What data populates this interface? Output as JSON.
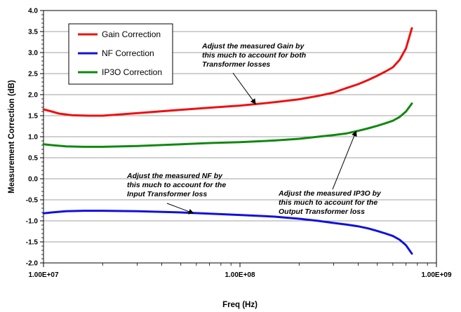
{
  "chart_data": {
    "type": "line",
    "xscale": "log",
    "xlim": [
      10000000,
      1000000000
    ],
    "ylim": [
      -2.0,
      4.0
    ],
    "grid": "horizontal-major",
    "xlabel": "Freq (Hz)",
    "ylabel": "Measurement Correction (dB)",
    "x_ticks": [
      {
        "value": 10000000,
        "label": "1.00E+07"
      },
      {
        "value": 100000000,
        "label": "1.00E+08"
      },
      {
        "value": 1000000000,
        "label": "1.00E+09"
      }
    ],
    "y_ticks": [
      {
        "value": 4.0,
        "label": "4.0"
      },
      {
        "value": 3.5,
        "label": "3.5"
      },
      {
        "value": 3.0,
        "label": "3.0"
      },
      {
        "value": 2.5,
        "label": "2.5"
      },
      {
        "value": 2.0,
        "label": "2.0"
      },
      {
        "value": 1.5,
        "label": "1.5"
      },
      {
        "value": 1.0,
        "label": "1.0"
      },
      {
        "value": 0.5,
        "label": "0.5"
      },
      {
        "value": 0.0,
        "label": "0.0"
      },
      {
        "value": -0.5,
        "label": "-0.5"
      },
      {
        "value": -1.0,
        "label": "-1.0"
      },
      {
        "value": -1.5,
        "label": "-1.5"
      },
      {
        "value": -2.0,
        "label": "-2.0"
      }
    ],
    "legend_position": "top-left",
    "series": [
      {
        "name": "Gain Correction",
        "color": "#ee1111",
        "points": [
          [
            10000000,
            1.65
          ],
          [
            11000000,
            1.6
          ],
          [
            12000000,
            1.55
          ],
          [
            14000000,
            1.51
          ],
          [
            17000000,
            1.5
          ],
          [
            20000000,
            1.5
          ],
          [
            30000000,
            1.56
          ],
          [
            50000000,
            1.64
          ],
          [
            70000000,
            1.69
          ],
          [
            100000000,
            1.74
          ],
          [
            150000000,
            1.82
          ],
          [
            200000000,
            1.89
          ],
          [
            250000000,
            1.97
          ],
          [
            300000000,
            2.05
          ],
          [
            350000000,
            2.16
          ],
          [
            400000000,
            2.25
          ],
          [
            450000000,
            2.35
          ],
          [
            500000000,
            2.45
          ],
          [
            550000000,
            2.55
          ],
          [
            600000000,
            2.65
          ],
          [
            650000000,
            2.83
          ],
          [
            700000000,
            3.1
          ],
          [
            750000000,
            3.58
          ]
        ]
      },
      {
        "name": "NF Correction",
        "color": "#1111dd",
        "points": [
          [
            10000000,
            -0.82
          ],
          [
            11000000,
            -0.8
          ],
          [
            13000000,
            -0.77
          ],
          [
            16000000,
            -0.76
          ],
          [
            20000000,
            -0.76
          ],
          [
            30000000,
            -0.77
          ],
          [
            50000000,
            -0.8
          ],
          [
            70000000,
            -0.83
          ],
          [
            100000000,
            -0.86
          ],
          [
            150000000,
            -0.9
          ],
          [
            200000000,
            -0.95
          ],
          [
            250000000,
            -1.0
          ],
          [
            300000000,
            -1.05
          ],
          [
            350000000,
            -1.09
          ],
          [
            400000000,
            -1.13
          ],
          [
            450000000,
            -1.18
          ],
          [
            500000000,
            -1.24
          ],
          [
            550000000,
            -1.3
          ],
          [
            600000000,
            -1.36
          ],
          [
            650000000,
            -1.45
          ],
          [
            700000000,
            -1.58
          ],
          [
            750000000,
            -1.78
          ]
        ]
      },
      {
        "name": "IP3O Correction",
        "color": "#118811",
        "points": [
          [
            10000000,
            0.82
          ],
          [
            11000000,
            0.8
          ],
          [
            13000000,
            0.77
          ],
          [
            16000000,
            0.76
          ],
          [
            20000000,
            0.76
          ],
          [
            30000000,
            0.78
          ],
          [
            50000000,
            0.82
          ],
          [
            70000000,
            0.85
          ],
          [
            100000000,
            0.87
          ],
          [
            150000000,
            0.91
          ],
          [
            200000000,
            0.95
          ],
          [
            250000000,
            1.0
          ],
          [
            300000000,
            1.04
          ],
          [
            350000000,
            1.08
          ],
          [
            400000000,
            1.14
          ],
          [
            450000000,
            1.2
          ],
          [
            500000000,
            1.26
          ],
          [
            550000000,
            1.32
          ],
          [
            600000000,
            1.38
          ],
          [
            650000000,
            1.47
          ],
          [
            700000000,
            1.6
          ],
          [
            750000000,
            1.79
          ]
        ]
      }
    ],
    "annotations": [
      {
        "lines": [
          "Adjust the measured Gain by",
          "this much to account for both",
          "Transformer losses"
        ],
        "target": [
          120000000,
          1.78
        ]
      },
      {
        "lines": [
          "Adjust the measured NF by",
          "this much to account for the",
          "Input Transformer loss"
        ],
        "target": [
          58000000,
          -0.82
        ]
      },
      {
        "lines": [
          "Adjust the measured IP3O by",
          "this much to account for the",
          "Output Transformer loss"
        ],
        "target": [
          390000000,
          1.13
        ]
      }
    ]
  }
}
